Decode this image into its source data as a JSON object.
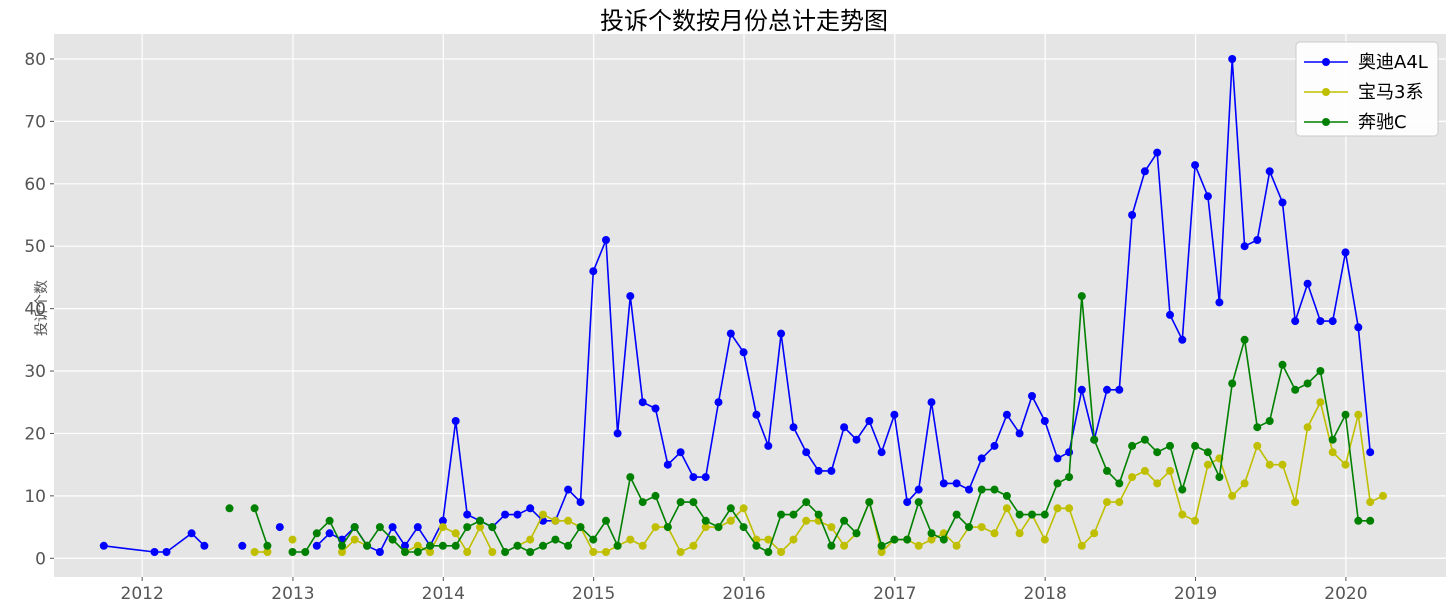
{
  "chart_data": {
    "type": "line",
    "title": "投诉个数按月份总计走势图",
    "xlabel": "",
    "ylabel": "投诉个数",
    "x_ticks": [
      "2012",
      "2013",
      "2014",
      "2015",
      "2016",
      "2017",
      "2018",
      "2019",
      "2020"
    ],
    "y_ticks": [
      "0",
      "10",
      "20",
      "30",
      "40",
      "50",
      "60",
      "70",
      "80"
    ],
    "xlim": [
      "2011-06-01",
      "2020-08-31"
    ],
    "ylim": [
      -3,
      84
    ],
    "grid": true,
    "legend_position": "top-right",
    "series": [
      {
        "name": "奥迪A4L",
        "color": "#0000ff",
        "points": [
          [
            "2011-09-30",
            2
          ],
          [
            "2012-01-31",
            1
          ],
          [
            "2012-02-29",
            1
          ],
          [
            "2012-04-30",
            4
          ],
          [
            "2012-05-31",
            2
          ],
          [
            "2012-07-31",
            null
          ],
          [
            "2012-08-31",
            2
          ],
          [
            "2012-09-30",
            null
          ],
          [
            "2012-10-31",
            null
          ],
          [
            "2012-11-30",
            5
          ],
          [
            "2012-12-31",
            null
          ],
          [
            "2013-01-31",
            null
          ],
          [
            "2013-02-28",
            2
          ],
          [
            "2013-03-31",
            4
          ],
          [
            "2013-04-30",
            3
          ],
          [
            "2013-05-31",
            5
          ],
          [
            "2013-06-30",
            2
          ],
          [
            "2013-07-31",
            1
          ],
          [
            "2013-08-31",
            5
          ],
          [
            "2013-09-30",
            2
          ],
          [
            "2013-10-31",
            5
          ],
          [
            "2013-11-30",
            2
          ],
          [
            "2013-12-31",
            6
          ],
          [
            "2014-01-31",
            22
          ],
          [
            "2014-02-28",
            7
          ],
          [
            "2014-03-31",
            6
          ],
          [
            "2014-04-30",
            5
          ],
          [
            "2014-05-31",
            7
          ],
          [
            "2014-06-30",
            7
          ],
          [
            "2014-07-31",
            8
          ],
          [
            "2014-08-31",
            6
          ],
          [
            "2014-09-30",
            6
          ],
          [
            "2014-10-31",
            11
          ],
          [
            "2014-11-30",
            9
          ],
          [
            "2014-12-31",
            46
          ],
          [
            "2015-01-31",
            51
          ],
          [
            "2015-02-28",
            20
          ],
          [
            "2015-03-31",
            42
          ],
          [
            "2015-04-30",
            25
          ],
          [
            "2015-05-31",
            24
          ],
          [
            "2015-06-30",
            15
          ],
          [
            "2015-07-31",
            17
          ],
          [
            "2015-08-31",
            13
          ],
          [
            "2015-09-30",
            13
          ],
          [
            "2015-10-31",
            25
          ],
          [
            "2015-11-30",
            36
          ],
          [
            "2015-12-31",
            33
          ],
          [
            "2016-01-31",
            23
          ],
          [
            "2016-02-29",
            18
          ],
          [
            "2016-03-31",
            36
          ],
          [
            "2016-04-30",
            21
          ],
          [
            "2016-05-31",
            17
          ],
          [
            "2016-06-30",
            14
          ],
          [
            "2016-07-31",
            14
          ],
          [
            "2016-08-31",
            21
          ],
          [
            "2016-09-30",
            19
          ],
          [
            "2016-10-31",
            22
          ],
          [
            "2016-11-30",
            17
          ],
          [
            "2016-12-31",
            23
          ],
          [
            "2017-01-31",
            9
          ],
          [
            "2017-02-28",
            11
          ],
          [
            "2017-03-31",
            25
          ],
          [
            "2017-04-30",
            12
          ],
          [
            "2017-05-31",
            12
          ],
          [
            "2017-06-30",
            11
          ],
          [
            "2017-07-31",
            16
          ],
          [
            "2017-08-31",
            18
          ],
          [
            "2017-09-30",
            23
          ],
          [
            "2017-10-31",
            20
          ],
          [
            "2017-11-30",
            26
          ],
          [
            "2017-12-31",
            22
          ],
          [
            "2018-01-31",
            16
          ],
          [
            "2018-02-28",
            17
          ],
          [
            "2018-03-31",
            27
          ],
          [
            "2018-04-30",
            19
          ],
          [
            "2018-05-31",
            27
          ],
          [
            "2018-06-30",
            27
          ],
          [
            "2018-07-31",
            55
          ],
          [
            "2018-08-31",
            62
          ],
          [
            "2018-09-30",
            65
          ],
          [
            "2018-10-31",
            39
          ],
          [
            "2018-11-30",
            35
          ],
          [
            "2018-12-31",
            63
          ],
          [
            "2019-01-31",
            58
          ],
          [
            "2019-02-28",
            41
          ],
          [
            "2019-03-31",
            80
          ],
          [
            "2019-04-30",
            50
          ],
          [
            "2019-05-31",
            51
          ],
          [
            "2019-06-30",
            62
          ],
          [
            "2019-07-31",
            57
          ],
          [
            "2019-08-31",
            38
          ],
          [
            "2019-09-30",
            44
          ],
          [
            "2019-10-31",
            38
          ],
          [
            "2019-11-30",
            38
          ],
          [
            "2019-12-31",
            49
          ],
          [
            "2020-01-31",
            37
          ],
          [
            "2020-02-29",
            17
          ]
        ]
      },
      {
        "name": "宝马3系",
        "color": "#bfbf00",
        "points": [
          [
            "2012-09-30",
            1
          ],
          [
            "2012-10-31",
            1
          ],
          [
            "2012-11-30",
            null
          ],
          [
            "2012-12-31",
            3
          ],
          [
            "2013-01-31",
            null
          ],
          [
            "2013-02-28",
            null
          ],
          [
            "2013-03-31",
            null
          ],
          [
            "2013-04-30",
            1
          ],
          [
            "2013-05-31",
            3
          ],
          [
            "2013-06-30",
            2
          ],
          [
            "2013-07-31",
            null
          ],
          [
            "2013-08-31",
            3
          ],
          [
            "2013-09-30",
            1
          ],
          [
            "2013-10-31",
            2
          ],
          [
            "2013-11-30",
            1
          ],
          [
            "2013-12-31",
            5
          ],
          [
            "2014-01-31",
            4
          ],
          [
            "2014-02-28",
            1
          ],
          [
            "2014-03-31",
            5
          ],
          [
            "2014-04-30",
            1
          ],
          [
            "2014-05-31",
            null
          ],
          [
            "2014-06-30",
            2
          ],
          [
            "2014-07-31",
            3
          ],
          [
            "2014-08-31",
            7
          ],
          [
            "2014-09-30",
            6
          ],
          [
            "2014-10-31",
            6
          ],
          [
            "2014-11-30",
            5
          ],
          [
            "2014-12-31",
            1
          ],
          [
            "2015-01-31",
            1
          ],
          [
            "2015-02-28",
            2
          ],
          [
            "2015-03-31",
            3
          ],
          [
            "2015-04-30",
            2
          ],
          [
            "2015-05-31",
            5
          ],
          [
            "2015-06-30",
            5
          ],
          [
            "2015-07-31",
            1
          ],
          [
            "2015-08-31",
            2
          ],
          [
            "2015-09-30",
            5
          ],
          [
            "2015-10-31",
            5
          ],
          [
            "2015-11-30",
            6
          ],
          [
            "2015-12-31",
            8
          ],
          [
            "2016-01-31",
            3
          ],
          [
            "2016-02-29",
            3
          ],
          [
            "2016-03-31",
            1
          ],
          [
            "2016-04-30",
            3
          ],
          [
            "2016-05-31",
            6
          ],
          [
            "2016-06-30",
            6
          ],
          [
            "2016-07-31",
            5
          ],
          [
            "2016-08-31",
            2
          ],
          [
            "2016-09-30",
            4
          ],
          [
            "2016-10-31",
            9
          ],
          [
            "2016-11-30",
            1
          ],
          [
            "2016-12-31",
            3
          ],
          [
            "2017-01-31",
            3
          ],
          [
            "2017-02-28",
            2
          ],
          [
            "2017-03-31",
            3
          ],
          [
            "2017-04-30",
            4
          ],
          [
            "2017-05-31",
            2
          ],
          [
            "2017-06-30",
            5
          ],
          [
            "2017-07-31",
            5
          ],
          [
            "2017-08-31",
            4
          ],
          [
            "2017-09-30",
            8
          ],
          [
            "2017-10-31",
            4
          ],
          [
            "2017-11-30",
            7
          ],
          [
            "2017-12-31",
            3
          ],
          [
            "2018-01-31",
            8
          ],
          [
            "2018-02-28",
            8
          ],
          [
            "2018-03-31",
            2
          ],
          [
            "2018-04-30",
            4
          ],
          [
            "2018-05-31",
            9
          ],
          [
            "2018-06-30",
            9
          ],
          [
            "2018-07-31",
            13
          ],
          [
            "2018-08-31",
            14
          ],
          [
            "2018-09-30",
            12
          ],
          [
            "2018-10-31",
            14
          ],
          [
            "2018-11-30",
            7
          ],
          [
            "2018-12-31",
            6
          ],
          [
            "2019-01-31",
            15
          ],
          [
            "2019-02-28",
            16
          ],
          [
            "2019-03-31",
            10
          ],
          [
            "2019-04-30",
            12
          ],
          [
            "2019-05-31",
            18
          ],
          [
            "2019-06-30",
            15
          ],
          [
            "2019-07-31",
            15
          ],
          [
            "2019-08-31",
            9
          ],
          [
            "2019-09-30",
            21
          ],
          [
            "2019-10-31",
            25
          ],
          [
            "2019-11-30",
            17
          ],
          [
            "2019-12-31",
            15
          ],
          [
            "2020-01-31",
            23
          ],
          [
            "2020-02-29",
            9
          ],
          [
            "2020-03-31",
            10
          ]
        ]
      },
      {
        "name": "奔驰C",
        "color": "#008000",
        "points": [
          [
            "2012-07-31",
            8
          ],
          [
            "2012-08-31",
            null
          ],
          [
            "2012-09-30",
            8
          ],
          [
            "2012-10-31",
            2
          ],
          [
            "2012-11-30",
            null
          ],
          [
            "2012-12-31",
            1
          ],
          [
            "2013-01-31",
            1
          ],
          [
            "2013-02-28",
            4
          ],
          [
            "2013-03-31",
            6
          ],
          [
            "2013-04-30",
            2
          ],
          [
            "2013-05-31",
            5
          ],
          [
            "2013-06-30",
            2
          ],
          [
            "2013-07-31",
            5
          ],
          [
            "2013-08-31",
            3
          ],
          [
            "2013-09-30",
            1
          ],
          [
            "2013-10-31",
            1
          ],
          [
            "2013-11-30",
            2
          ],
          [
            "2013-12-31",
            2
          ],
          [
            "2014-01-31",
            2
          ],
          [
            "2014-02-28",
            5
          ],
          [
            "2014-03-31",
            6
          ],
          [
            "2014-04-30",
            5
          ],
          [
            "2014-05-31",
            1
          ],
          [
            "2014-06-30",
            2
          ],
          [
            "2014-07-31",
            1
          ],
          [
            "2014-08-31",
            2
          ],
          [
            "2014-09-30",
            3
          ],
          [
            "2014-10-31",
            2
          ],
          [
            "2014-11-30",
            5
          ],
          [
            "2014-12-31",
            3
          ],
          [
            "2015-01-31",
            6
          ],
          [
            "2015-02-28",
            2
          ],
          [
            "2015-03-31",
            13
          ],
          [
            "2015-04-30",
            9
          ],
          [
            "2015-05-31",
            10
          ],
          [
            "2015-06-30",
            5
          ],
          [
            "2015-07-31",
            9
          ],
          [
            "2015-08-31",
            9
          ],
          [
            "2015-09-30",
            6
          ],
          [
            "2015-10-31",
            5
          ],
          [
            "2015-11-30",
            8
          ],
          [
            "2015-12-31",
            5
          ],
          [
            "2016-01-31",
            2
          ],
          [
            "2016-02-29",
            1
          ],
          [
            "2016-03-31",
            7
          ],
          [
            "2016-04-30",
            7
          ],
          [
            "2016-05-31",
            9
          ],
          [
            "2016-06-30",
            7
          ],
          [
            "2016-07-31",
            2
          ],
          [
            "2016-08-31",
            6
          ],
          [
            "2016-09-30",
            4
          ],
          [
            "2016-10-31",
            9
          ],
          [
            "2016-11-30",
            2
          ],
          [
            "2016-12-31",
            3
          ],
          [
            "2017-01-31",
            3
          ],
          [
            "2017-02-28",
            9
          ],
          [
            "2017-03-31",
            4
          ],
          [
            "2017-04-30",
            3
          ],
          [
            "2017-05-31",
            7
          ],
          [
            "2017-06-30",
            5
          ],
          [
            "2017-07-31",
            11
          ],
          [
            "2017-08-31",
            11
          ],
          [
            "2017-09-30",
            10
          ],
          [
            "2017-10-31",
            7
          ],
          [
            "2017-11-30",
            7
          ],
          [
            "2017-12-31",
            7
          ],
          [
            "2018-01-31",
            12
          ],
          [
            "2018-02-28",
            13
          ],
          [
            "2018-03-31",
            42
          ],
          [
            "2018-04-30",
            19
          ],
          [
            "2018-05-31",
            14
          ],
          [
            "2018-06-30",
            12
          ],
          [
            "2018-07-31",
            18
          ],
          [
            "2018-08-31",
            19
          ],
          [
            "2018-09-30",
            17
          ],
          [
            "2018-10-31",
            18
          ],
          [
            "2018-11-30",
            11
          ],
          [
            "2018-12-31",
            18
          ],
          [
            "2019-01-31",
            17
          ],
          [
            "2019-02-28",
            13
          ],
          [
            "2019-03-31",
            28
          ],
          [
            "2019-04-30",
            35
          ],
          [
            "2019-05-31",
            21
          ],
          [
            "2019-06-30",
            22
          ],
          [
            "2019-07-31",
            31
          ],
          [
            "2019-08-31",
            27
          ],
          [
            "2019-09-30",
            28
          ],
          [
            "2019-10-31",
            30
          ],
          [
            "2019-11-30",
            19
          ],
          [
            "2019-12-31",
            23
          ],
          [
            "2020-01-31",
            6
          ],
          [
            "2020-02-29",
            6
          ]
        ]
      }
    ]
  }
}
